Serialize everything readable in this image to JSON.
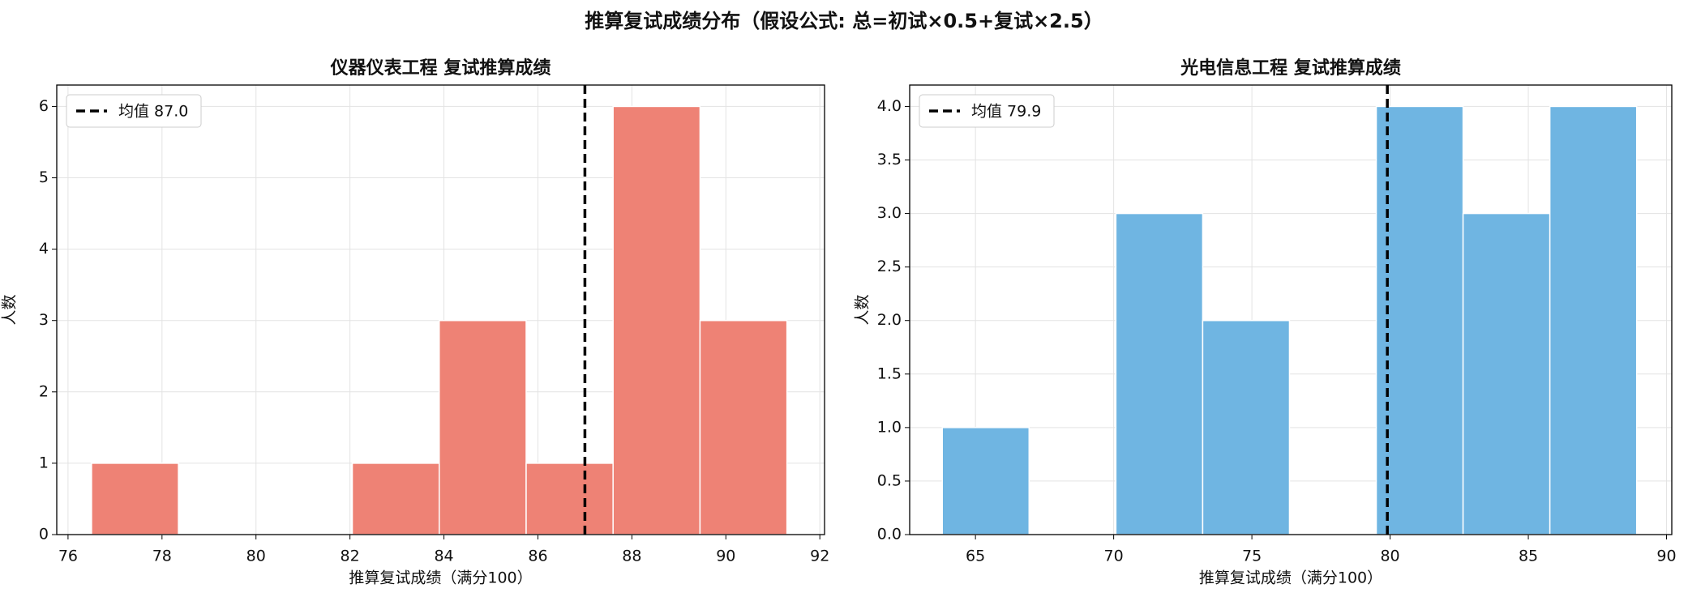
{
  "title": "推算复试成绩分布（假设公式: 总=初试×0.5+复试×2.5）",
  "chart_data": [
    {
      "type": "histogram",
      "title": "仪器仪表工程 复试推算成绩",
      "xlabel": "推算复试成绩（满分100）",
      "ylabel": "人数",
      "bins": [
        76.5,
        78.35,
        80.2,
        82.05,
        83.9,
        85.75,
        87.6,
        89.45,
        91.3
      ],
      "values": [
        1,
        0,
        0,
        1,
        3,
        1,
        6,
        3
      ],
      "color": "#ee8275",
      "mean": 87.0,
      "mean_label": "均值 87.0",
      "xlim": [
        75.76,
        92.1
      ],
      "ylim": [
        0,
        6.3
      ],
      "xticks": [
        76,
        78,
        80,
        82,
        84,
        86,
        88,
        90,
        92
      ],
      "yticks": [
        0,
        1,
        2,
        3,
        4,
        5,
        6
      ],
      "grid": true,
      "legend": "upper left"
    },
    {
      "type": "histogram",
      "title": "光电信息工程 复试推算成绩",
      "xlabel": "推算复试成绩（满分100）",
      "ylabel": "人数",
      "bins": [
        63.8,
        66.94,
        70.08,
        73.22,
        76.36,
        79.5,
        82.64,
        85.78,
        88.92
      ],
      "values": [
        1,
        0,
        3,
        2,
        0,
        4,
        3,
        4
      ],
      "color": "#6fb5e2",
      "mean": 79.9,
      "mean_label": "均值 79.9",
      "xlim": [
        62.62,
        90.19
      ],
      "ylim": [
        0,
        4.2
      ],
      "xticks": [
        65,
        70,
        75,
        80,
        85,
        90
      ],
      "yticks": [
        {
          "value": 0,
          "label": "0.0"
        },
        {
          "value": 0.5,
          "label": "0.5"
        },
        {
          "value": 1,
          "label": "1.0"
        },
        {
          "value": 1.5,
          "label": "1.5"
        },
        {
          "value": 2,
          "label": "2.0"
        },
        {
          "value": 2.5,
          "label": "2.5"
        },
        {
          "value": 3,
          "label": "3.0"
        },
        {
          "value": 3.5,
          "label": "3.5"
        },
        {
          "value": 4,
          "label": "4.0"
        }
      ],
      "grid": true,
      "legend": "upper left"
    }
  ]
}
